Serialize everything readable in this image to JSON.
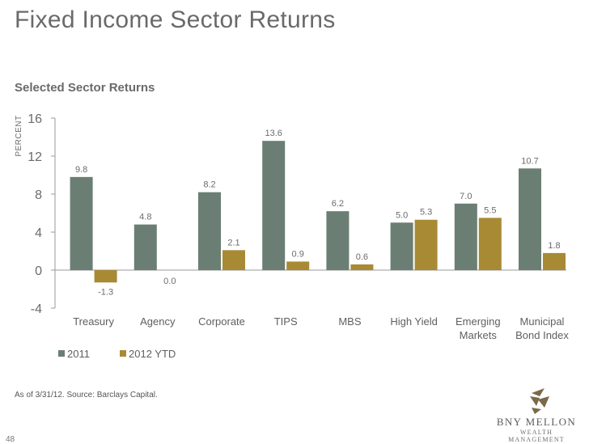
{
  "slide": {
    "title": "Fixed Income Sector Returns",
    "footnote": "As of 3/31/12. Source: Barclays Capital.",
    "page_number": "48"
  },
  "brand": {
    "name": "BNY MELLON",
    "subtitle": "WEALTH MANAGEMENT",
    "logo_icon": "bny-mellon-logo-icon",
    "logo_color": "#7a6a48"
  },
  "chart_data": {
    "type": "bar",
    "title": "Selected Sector Returns",
    "ylabel": "PERCENT",
    "xlabel": "",
    "ylim": [
      -4,
      16
    ],
    "yticks": [
      16,
      12,
      8,
      4,
      0,
      -4
    ],
    "categories": [
      [
        "Treasury"
      ],
      [
        "Agency"
      ],
      [
        "Corporate"
      ],
      [
        "TIPS"
      ],
      [
        "MBS"
      ],
      [
        "High Yield"
      ],
      [
        "Emerging",
        "Markets"
      ],
      [
        "Municipal",
        "Bond Index"
      ]
    ],
    "series": [
      {
        "name": "2011",
        "color": "#6b7e73",
        "values": [
          9.8,
          4.8,
          8.2,
          13.6,
          6.2,
          5.0,
          7.0,
          10.7
        ]
      },
      {
        "name": "2012 YTD",
        "color": "#a88a35",
        "values": [
          -1.3,
          0.0,
          2.1,
          0.9,
          0.6,
          5.3,
          5.5,
          1.8
        ]
      }
    ],
    "labels": [
      [
        "9.8",
        "4.8",
        "8.2",
        "13.6",
        "6.2",
        "5.0",
        "7.0",
        "10.7"
      ],
      [
        "-1.3",
        "0.0",
        "2.1",
        "0.9",
        "0.6",
        "5.3",
        "5.5",
        "1.8"
      ]
    ],
    "legend_position": "bottom-left",
    "grid": false
  }
}
